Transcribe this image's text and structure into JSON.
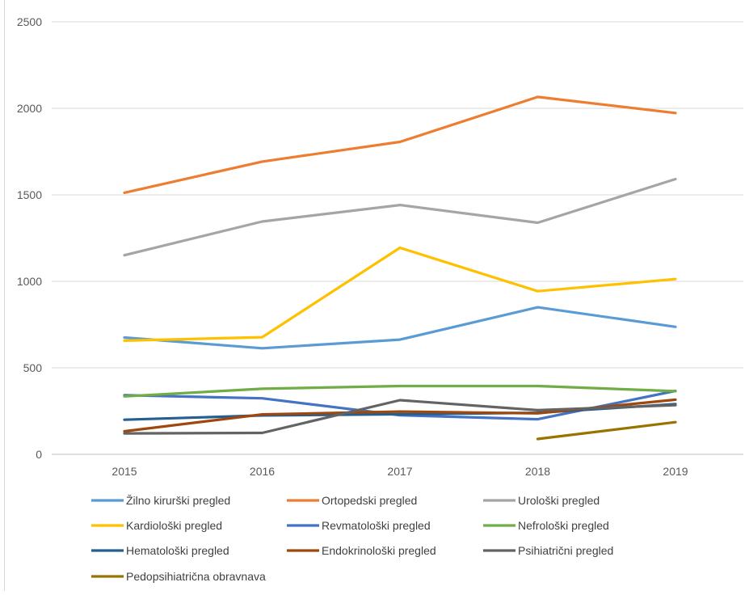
{
  "chart_data": {
    "type": "line",
    "categories": [
      "2015",
      "2016",
      "2017",
      "2018",
      "2019"
    ],
    "ylim": [
      0,
      2500
    ],
    "yticks": [
      0,
      500,
      1000,
      1500,
      2000,
      2500
    ],
    "grid": "horizontal",
    "legend_position": "bottom",
    "series": [
      {
        "name": "Žilno kirurški pregled",
        "color": "#5b9bd5",
        "values": [
          675,
          613,
          663,
          850,
          737
        ]
      },
      {
        "name": "Ortopedski pregled",
        "color": "#ed7d31",
        "values": [
          1512,
          1692,
          1806,
          2066,
          1973
        ]
      },
      {
        "name": "Urološki pregled",
        "color": "#a5a5a5",
        "values": [
          1151,
          1346,
          1441,
          1339,
          1591
        ]
      },
      {
        "name": "Kardiološki pregled",
        "color": "#ffc000",
        "values": [
          657,
          677,
          1194,
          943,
          1013
        ]
      },
      {
        "name": "Revmatološki pregled",
        "color": "#4472c4",
        "values": [
          342,
          324,
          226,
          203,
          367
        ]
      },
      {
        "name": "Nefrološki pregled",
        "color": "#70ad47",
        "values": [
          335,
          379,
          395,
          395,
          365
        ]
      },
      {
        "name": "Hematološki pregled",
        "color": "#255e91",
        "values": [
          200,
          225,
          232,
          240,
          290
        ]
      },
      {
        "name": "Endokrinološki pregled",
        "color": "#9e480e",
        "values": [
          133,
          231,
          247,
          237,
          316
        ]
      },
      {
        "name": "Psihiatrični pregled",
        "color": "#636363",
        "values": [
          121,
          124,
          313,
          255,
          284
        ]
      },
      {
        "name": "Pedopsihiatrična obravnava",
        "color": "#997300",
        "values": [
          null,
          null,
          null,
          89,
          186
        ]
      }
    ]
  }
}
